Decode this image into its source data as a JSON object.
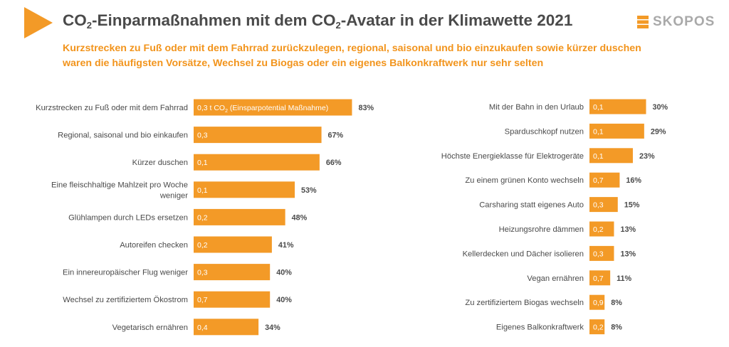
{
  "header": {
    "title_parts": [
      "CO",
      "2",
      "-Einparmaßnahmen mit dem CO",
      "2",
      "-Avatar in der Klimawette 2021"
    ],
    "subtitle": "Kurzstrecken zu Fuß oder mit dem Fahrrad zurückzulegen, regional, saisonal und bio einzukaufen sowie kürzer duschen waren die häufigsten Vorsätze, Wechsel zu Biogas oder ein eigenes Balkonkraftwerk nur sehr selten",
    "logo_text": "SKOPOS"
  },
  "colors": {
    "bar": "#f39a27",
    "accent": "#f2941c",
    "text": "#4a4a4a",
    "logo": "#a9a9a9"
  },
  "chart_data": [
    {
      "type": "bar",
      "orientation": "horizontal",
      "xlim": [
        0,
        100
      ],
      "grid": false,
      "categories": [
        [
          "Kurzstrecken zu Fuß oder mit dem Fahrrad"
        ],
        [
          "Regional, saisonal und bio einkaufen"
        ],
        [
          "Kürzer duschen"
        ],
        [
          "Eine fleischhaltige Mahlzeit pro Woche",
          "weniger"
        ],
        [
          "Glühlampen durch LEDs ersetzen"
        ],
        [
          "Autoreifen checken"
        ],
        [
          "Ein innereuropäischer Flug weniger"
        ],
        [
          "Wechsel zu zertifiziertem Ökostrom"
        ],
        [
          "Vegetarisch ernähren"
        ]
      ],
      "values": [
        83,
        67,
        66,
        53,
        48,
        41,
        40,
        40,
        34
      ],
      "value_labels": [
        "83%",
        "67%",
        "66%",
        "53%",
        "48%",
        "41%",
        "40%",
        "40%",
        "34%"
      ],
      "inner_labels": [
        [
          "0,3 t CO",
          "2",
          " (Einsparpotential Maßnahme)"
        ],
        [
          "0,3"
        ],
        [
          "0,1"
        ],
        [
          "0,1"
        ],
        [
          "0,2"
        ],
        [
          "0,2"
        ],
        [
          "0,3"
        ],
        [
          "0,7"
        ],
        [
          "0,4"
        ]
      ]
    },
    {
      "type": "bar",
      "orientation": "horizontal",
      "xlim": [
        0,
        100
      ],
      "grid": false,
      "categories": [
        [
          "Mit der Bahn in den Urlaub"
        ],
        [
          "Sparduschkopf nutzen"
        ],
        [
          "Höchste Energieklasse für Elektrogeräte"
        ],
        [
          "Zu einem grünen Konto wechseln"
        ],
        [
          "Carsharing statt eigenes Auto"
        ],
        [
          "Heizungsrohre dämmen"
        ],
        [
          "Kellerdecken und Dächer isolieren"
        ],
        [
          "Vegan ernähren"
        ],
        [
          "Zu zertifiziertem Biogas wechseln"
        ],
        [
          "Eigenes Balkonkraftwerk"
        ]
      ],
      "values": [
        30,
        29,
        23,
        16,
        15,
        13,
        13,
        11,
        8,
        8
      ],
      "value_labels": [
        "30%",
        "29%",
        "23%",
        "16%",
        "15%",
        "13%",
        "13%",
        "11%",
        "8%",
        "8%"
      ],
      "inner_labels": [
        [
          "0,1"
        ],
        [
          "0,1"
        ],
        [
          "0,1"
        ],
        [
          "0,7"
        ],
        [
          "0,3"
        ],
        [
          "0,2"
        ],
        [
          "0,3"
        ],
        [
          "0,7"
        ],
        [
          "0,9"
        ],
        [
          "0,2"
        ]
      ]
    }
  ]
}
